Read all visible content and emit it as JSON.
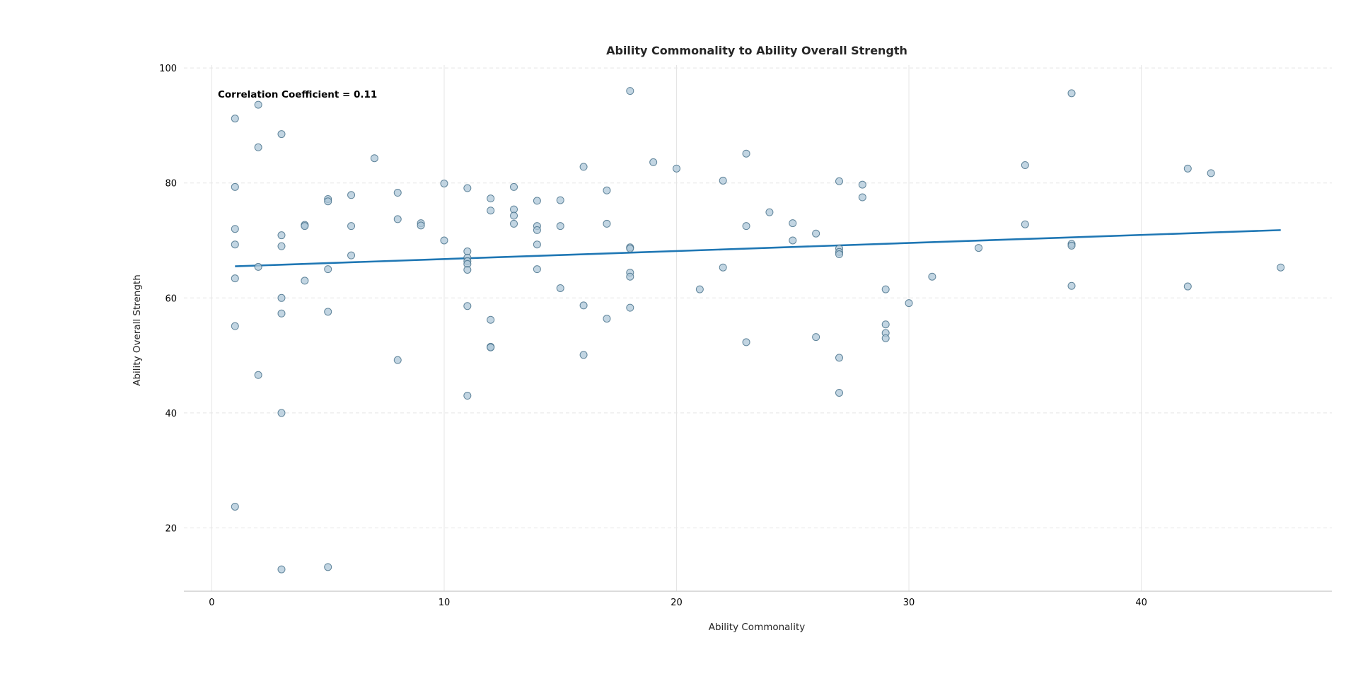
{
  "colors": {
    "background": "#ffffff",
    "grid": "#e5e5e5",
    "axis": "#d0d0d0",
    "point_fill": "#aec7d8",
    "point_stroke": "#3e6a85",
    "trend_line": "#1f77b4",
    "text": "#262626"
  },
  "chart_data": {
    "type": "scatter",
    "title": "Ability Commonality to Ability Overall Strength",
    "xlabel": "Ability Commonality",
    "ylabel": "Ability Overall Strength",
    "xlim": [
      -1.2,
      48.2
    ],
    "ylim": [
      9,
      100.5
    ],
    "xticks": [
      0,
      10,
      20,
      30,
      40
    ],
    "yticks": [
      20,
      40,
      60,
      80,
      100
    ],
    "grid": true,
    "legend": "none",
    "annotation": "Correlation Coefficient = 0.11",
    "trend_line": {
      "x_start": 1,
      "y_start": 65.5,
      "x_end": 46,
      "y_end": 71.8
    },
    "points": [
      [
        1,
        91.2
      ],
      [
        1,
        79.3
      ],
      [
        1,
        72.0
      ],
      [
        1,
        69.3
      ],
      [
        1,
        63.4
      ],
      [
        1,
        55.1
      ],
      [
        1,
        23.7
      ],
      [
        2,
        93.6
      ],
      [
        2,
        86.2
      ],
      [
        2,
        65.4
      ],
      [
        2,
        46.6
      ],
      [
        3,
        88.5
      ],
      [
        3,
        70.9
      ],
      [
        3,
        69.0
      ],
      [
        3,
        60.0
      ],
      [
        3,
        57.3
      ],
      [
        3,
        40.0
      ],
      [
        3,
        12.8
      ],
      [
        4,
        72.7
      ],
      [
        4,
        72.5
      ],
      [
        4,
        63.0
      ],
      [
        5,
        77.2
      ],
      [
        5,
        76.8
      ],
      [
        5,
        65.0
      ],
      [
        5,
        57.6
      ],
      [
        5,
        13.2
      ],
      [
        6,
        77.9
      ],
      [
        6,
        72.5
      ],
      [
        6,
        67.4
      ],
      [
        7,
        84.3
      ],
      [
        8,
        78.3
      ],
      [
        8,
        73.7
      ],
      [
        8,
        49.2
      ],
      [
        9,
        73.0
      ],
      [
        9,
        72.6
      ],
      [
        10,
        79.9
      ],
      [
        10,
        70.0
      ],
      [
        11,
        79.1
      ],
      [
        11,
        68.1
      ],
      [
        11,
        67.0
      ],
      [
        11,
        66.4
      ],
      [
        11,
        65.9
      ],
      [
        11,
        64.9
      ],
      [
        11,
        58.6
      ],
      [
        11,
        43.0
      ],
      [
        12,
        77.3
      ],
      [
        12,
        75.2
      ],
      [
        12,
        56.2
      ],
      [
        12,
        51.5
      ],
      [
        12,
        51.4
      ],
      [
        13,
        79.3
      ],
      [
        13,
        75.4
      ],
      [
        13,
        74.3
      ],
      [
        13,
        72.9
      ],
      [
        14,
        76.9
      ],
      [
        14,
        72.5
      ],
      [
        14,
        71.8
      ],
      [
        14,
        69.3
      ],
      [
        14,
        65.0
      ],
      [
        15,
        77.0
      ],
      [
        15,
        72.5
      ],
      [
        15,
        61.7
      ],
      [
        16,
        82.8
      ],
      [
        16,
        58.7
      ],
      [
        16,
        50.1
      ],
      [
        17,
        78.7
      ],
      [
        17,
        72.9
      ],
      [
        17,
        56.4
      ],
      [
        18,
        96.0
      ],
      [
        18,
        68.8
      ],
      [
        18,
        68.6
      ],
      [
        18,
        64.4
      ],
      [
        18,
        63.7
      ],
      [
        18,
        58.3
      ],
      [
        19,
        83.6
      ],
      [
        20,
        82.5
      ],
      [
        21,
        61.5
      ],
      [
        22,
        80.4
      ],
      [
        22,
        65.3
      ],
      [
        23,
        85.1
      ],
      [
        23,
        72.5
      ],
      [
        23,
        52.3
      ],
      [
        24,
        74.9
      ],
      [
        25,
        73.0
      ],
      [
        25,
        70.0
      ],
      [
        26,
        71.2
      ],
      [
        26,
        53.2
      ],
      [
        27,
        80.3
      ],
      [
        27,
        68.6
      ],
      [
        27,
        68.0
      ],
      [
        27,
        67.6
      ],
      [
        27,
        49.6
      ],
      [
        27,
        43.5
      ],
      [
        28,
        79.7
      ],
      [
        28,
        77.5
      ],
      [
        29,
        61.5
      ],
      [
        29,
        55.4
      ],
      [
        29,
        53.9
      ],
      [
        29,
        53.0
      ],
      [
        30,
        59.1
      ],
      [
        31,
        63.7
      ],
      [
        33,
        68.7
      ],
      [
        35,
        83.1
      ],
      [
        35,
        72.8
      ],
      [
        37,
        95.6
      ],
      [
        37,
        69.4
      ],
      [
        37,
        69.1
      ],
      [
        37,
        62.1
      ],
      [
        42,
        82.5
      ],
      [
        42,
        62.0
      ],
      [
        43,
        81.7
      ],
      [
        46,
        65.3
      ]
    ]
  }
}
